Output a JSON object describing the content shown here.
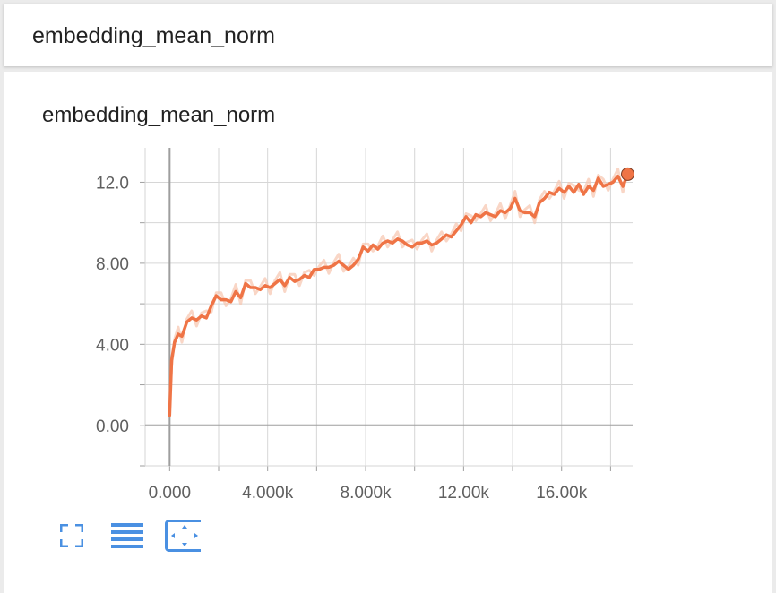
{
  "header": {
    "title": "embedding_mean_norm"
  },
  "card": {
    "title": "embedding_mean_norm"
  },
  "toolbar": {
    "items": [
      {
        "icon": "fullscreen-icon"
      },
      {
        "icon": "list-icon"
      },
      {
        "icon": "fit-domain-icon",
        "selected": true
      }
    ]
  },
  "colors": {
    "line": "#ef7446",
    "line_raw": "#f7c4ae",
    "accent": "#4a90e2",
    "grid": "#d6d6d6",
    "axis": "#9e9e9e"
  },
  "chart_data": {
    "type": "line",
    "title": "embedding_mean_norm",
    "xlabel": "",
    "ylabel": "",
    "xlim": [
      -1000,
      18900
    ],
    "ylim": [
      -2.0,
      13.7
    ],
    "xticks": [
      0,
      4000,
      8000,
      12000,
      16000
    ],
    "xtick_labels": [
      "0.000",
      "4.000k",
      "8.000k",
      "12.00k",
      "16.00k"
    ],
    "yticks": [
      0,
      4,
      8,
      12
    ],
    "ytick_labels": [
      "0.00",
      "4.00",
      "8.00",
      "12.0"
    ],
    "grid": true,
    "series": [
      {
        "name": "",
        "x": [
          0,
          80,
          200,
          350,
          500,
          700,
          900,
          1100,
          1300,
          1500,
          1700,
          1900,
          2100,
          2300,
          2500,
          2700,
          2900,
          3100,
          3300,
          3500,
          3700,
          3900,
          4100,
          4300,
          4500,
          4700,
          4900,
          5100,
          5300,
          5500,
          5700,
          5900,
          6100,
          6300,
          6500,
          6700,
          6900,
          7100,
          7300,
          7500,
          7700,
          7900,
          8100,
          8300,
          8500,
          8700,
          8900,
          9100,
          9300,
          9500,
          9700,
          9900,
          10100,
          10300,
          10500,
          10700,
          10900,
          11100,
          11300,
          11500,
          11700,
          11900,
          12100,
          12300,
          12500,
          12700,
          12900,
          13100,
          13300,
          13500,
          13700,
          13900,
          14100,
          14300,
          14500,
          14700,
          14900,
          15100,
          15300,
          15500,
          15700,
          15900,
          16100,
          16300,
          16500,
          16700,
          16900,
          17100,
          17300,
          17500,
          17700,
          17900,
          18100,
          18300,
          18500,
          18700
        ],
        "values": [
          0.5,
          3.2,
          4.1,
          4.5,
          4.4,
          5.1,
          5.3,
          5.2,
          5.4,
          5.3,
          5.9,
          6.4,
          6.2,
          6.2,
          6.1,
          6.6,
          6.3,
          7.0,
          6.8,
          6.8,
          6.7,
          6.9,
          6.8,
          7.0,
          7.2,
          6.9,
          7.3,
          7.1,
          7.2,
          7.4,
          7.3,
          7.7,
          7.7,
          7.8,
          7.8,
          7.9,
          8.1,
          7.9,
          7.7,
          7.9,
          8.2,
          8.8,
          8.6,
          8.9,
          8.7,
          9.0,
          9.1,
          9.0,
          9.2,
          9.1,
          8.9,
          8.8,
          9.0,
          9.0,
          9.1,
          8.9,
          9.0,
          9.2,
          9.4,
          9.3,
          9.6,
          9.9,
          10.3,
          10.0,
          10.4,
          10.3,
          10.5,
          10.4,
          10.3,
          10.6,
          10.5,
          10.7,
          11.2,
          10.6,
          10.5,
          10.5,
          10.3,
          11.0,
          11.2,
          11.5,
          11.4,
          11.7,
          11.5,
          11.8,
          11.5,
          11.9,
          11.4,
          11.8,
          11.6,
          12.2,
          11.8,
          11.9,
          12.0,
          12.3,
          11.8,
          12.4
        ]
      }
    ]
  }
}
